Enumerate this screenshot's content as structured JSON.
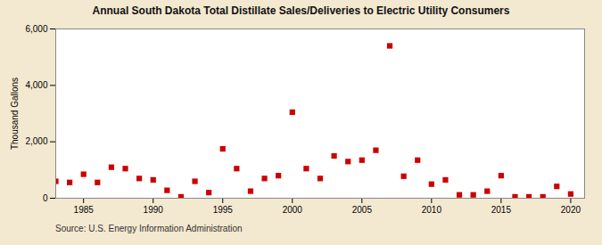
{
  "chart_data": {
    "type": "scatter",
    "title": "Annual South Dakota Total Distillate Sales/Deliveries to Electric Utility Consumers",
    "ylabel": "Thousand Gallons",
    "annotations": [
      "Source: U.S. Energy Information Administration"
    ],
    "x": [
      1983,
      1984,
      1985,
      1986,
      1987,
      1988,
      1989,
      1990,
      1991,
      1992,
      1993,
      1994,
      1995,
      1996,
      1997,
      1998,
      1999,
      2000,
      2001,
      2002,
      2003,
      2004,
      2005,
      2006,
      2007,
      2008,
      2009,
      2010,
      2011,
      2012,
      2013,
      2014,
      2015,
      2016,
      2017,
      2018,
      2019,
      2020
    ],
    "values": [
      600,
      560,
      850,
      560,
      1100,
      1050,
      700,
      650,
      280,
      50,
      600,
      200,
      1750,
      1050,
      250,
      700,
      800,
      3050,
      1050,
      700,
      1500,
      1300,
      1350,
      1700,
      5400,
      780,
      1350,
      500,
      650,
      120,
      120,
      250,
      800,
      50,
      50,
      50,
      420,
      150
    ],
    "color": "#cc0000",
    "marker": "square",
    "xlim": [
      1983,
      2021
    ],
    "ylim": [
      0,
      6000
    ],
    "xticks": [
      1985,
      1990,
      1995,
      2000,
      2005,
      2010,
      2015,
      2020
    ],
    "yticks": [
      0,
      {
        "value": 2000,
        "label": "2,000"
      },
      {
        "value": 4000,
        "label": "4,000"
      },
      {
        "value": 6000,
        "label": "6,000"
      }
    ],
    "grid": true
  }
}
